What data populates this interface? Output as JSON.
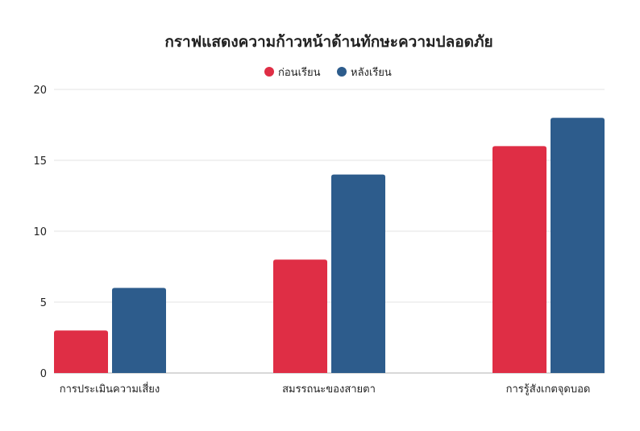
{
  "chart_data": {
    "type": "bar",
    "title": "กราฟแสดงความก้าวหน้าด้านทักษะความปลอดภัย",
    "categories": [
      "การประเมินความเสี่ยง",
      "สมรรถนะของสายตา",
      "การรู้สังเกตจุดบอด"
    ],
    "series": [
      {
        "name": "ก่อนเรียน",
        "color": "#df2e45",
        "values": [
          3,
          8,
          16
        ]
      },
      {
        "name": "หลังเรียน",
        "color": "#2d5c8c",
        "values": [
          6,
          14,
          18
        ]
      }
    ],
    "ylim": [
      0,
      20
    ],
    "yticks": [
      0,
      5,
      10,
      15,
      20
    ],
    "grid": true,
    "legend_position": "top-center",
    "xlabel": "",
    "ylabel": ""
  }
}
